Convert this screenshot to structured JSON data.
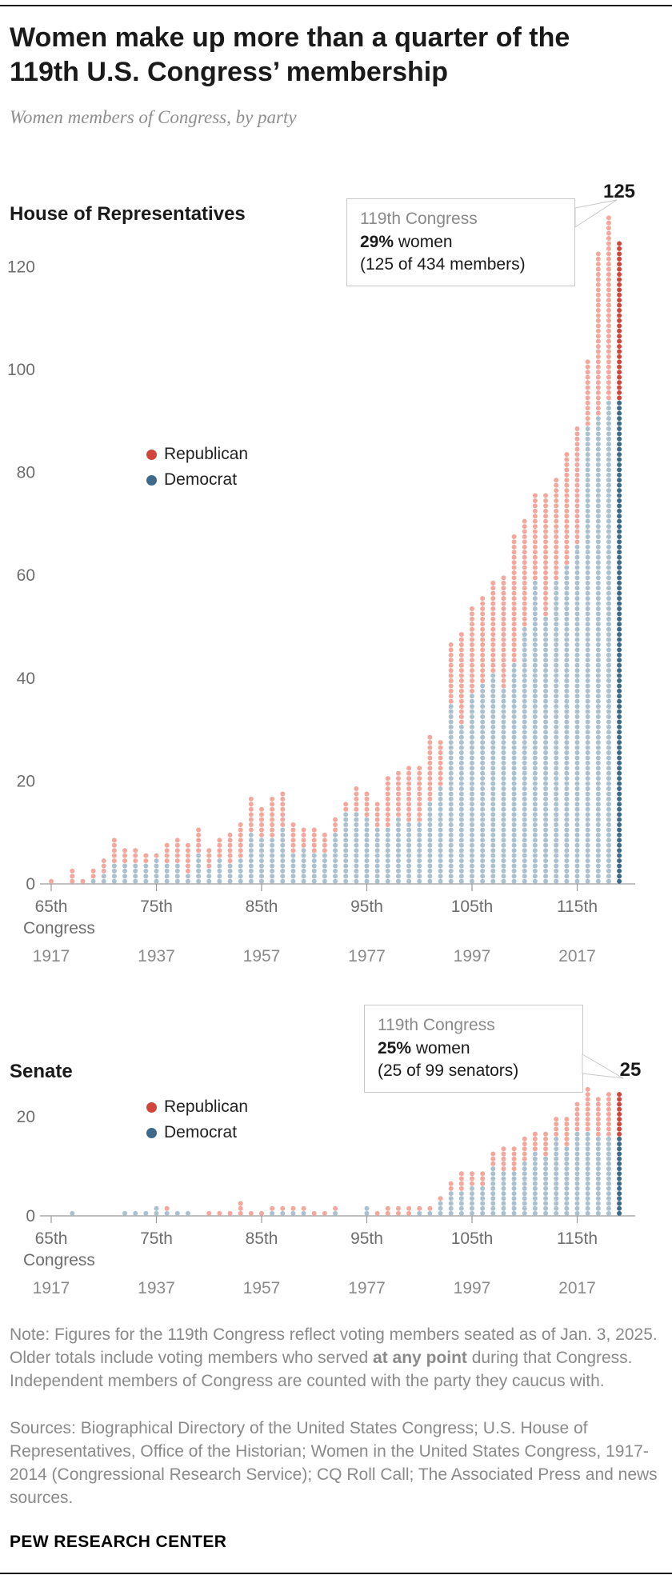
{
  "header": {
    "title": "Women make up more than a quarter of the 119th U.S. Congress’ membership",
    "subtitle": "Women members of Congress, by party"
  },
  "colors": {
    "republican": "#d0453c",
    "democrat": "#3d6a8a",
    "republican_light": "#f3a79d",
    "democrat_light": "#abc1cf"
  },
  "house": {
    "section_label": "House of Representatives",
    "legend": [
      {
        "label": "Republican",
        "color_key": "republican"
      },
      {
        "label": "Democrat",
        "color_key": "democrat"
      }
    ],
    "callout": {
      "title": "119th Congress",
      "stat_bold": "29%",
      "stat_rest": " women",
      "detail": "(125 of 434 members)"
    },
    "value_label": "125"
  },
  "senate": {
    "section_label": "Senate",
    "legend": [
      {
        "label": "Republican",
        "color_key": "republican"
      },
      {
        "label": "Democrat",
        "color_key": "democrat"
      }
    ],
    "callout": {
      "title": "119th Congress",
      "stat_bold": "25%",
      "stat_rest": " women",
      "detail": "(25 of 99 senators)"
    },
    "value_label": "25"
  },
  "notes": {
    "note_pre": "Note: Figures for the 119th Congress reflect voting members seated as of Jan. 3, 2025. Older totals include voting members who served ",
    "note_bold": "at any point",
    "note_post": " during that Congress. Independent members of Congress are counted with the party they caucus with.",
    "sources": "Sources: Biographical Directory of the United States Congress; U.S. House of Representatives, Office of the Historian; Women in the United States Congress, 1917-2014 (Congressional Research Service); CQ Roll Call; The Associated Press and news sources.",
    "footer": "PEW RESEARCH CENTER"
  },
  "chart_data": [
    {
      "id": "house",
      "type": "bar",
      "style": "stacked-dot-column",
      "title": "House of Representatives",
      "highlight_x": 119,
      "ylim": [
        0,
        130
      ],
      "yticks": [
        0,
        20,
        40,
        60,
        80,
        100,
        120
      ],
      "x": [
        65,
        66,
        67,
        68,
        69,
        70,
        71,
        72,
        73,
        74,
        75,
        76,
        77,
        78,
        79,
        80,
        81,
        82,
        83,
        84,
        85,
        86,
        87,
        88,
        89,
        90,
        91,
        92,
        93,
        94,
        95,
        96,
        97,
        98,
        99,
        100,
        101,
        102,
        103,
        104,
        105,
        106,
        107,
        108,
        109,
        110,
        111,
        112,
        113,
        114,
        115,
        116,
        117,
        118,
        119
      ],
      "series": [
        {
          "name": "Democrat",
          "values": [
            0,
            0,
            0,
            0,
            1,
            2,
            4,
            4,
            4,
            4,
            5,
            4,
            4,
            2,
            6,
            3,
            5,
            4,
            5,
            10,
            9,
            9,
            11,
            6,
            7,
            6,
            6,
            10,
            14,
            14,
            13,
            11,
            11,
            13,
            12,
            12,
            16,
            19,
            35,
            31,
            37,
            39,
            41,
            38,
            43,
            50,
            59,
            52,
            59,
            62,
            66,
            89,
            91,
            94,
            94
          ]
        },
        {
          "name": "Republican",
          "values": [
            1,
            0,
            3,
            1,
            2,
            3,
            5,
            3,
            3,
            2,
            1,
            4,
            5,
            6,
            5,
            4,
            4,
            6,
            7,
            7,
            6,
            8,
            7,
            6,
            4,
            5,
            4,
            3,
            2,
            5,
            5,
            5,
            10,
            9,
            11,
            11,
            13,
            9,
            12,
            18,
            17,
            17,
            18,
            22,
            25,
            21,
            17,
            24,
            20,
            22,
            23,
            13,
            32,
            36,
            31
          ]
        }
      ],
      "x_ticks": [
        {
          "value": 65,
          "label": "65th",
          "sub": "Congress",
          "year": "1917"
        },
        {
          "value": 75,
          "label": "75th",
          "year": "1937"
        },
        {
          "value": 85,
          "label": "85th",
          "year": "1957"
        },
        {
          "value": 95,
          "label": "95th",
          "year": "1977"
        },
        {
          "value": 105,
          "label": "105th",
          "year": "1997"
        },
        {
          "value": 115,
          "label": "115th",
          "year": "2017"
        }
      ]
    },
    {
      "id": "senate",
      "type": "bar",
      "style": "stacked-dot-column",
      "title": "Senate",
      "highlight_x": 119,
      "ylim": [
        0,
        26
      ],
      "yticks": [
        0,
        20
      ],
      "x": [
        65,
        66,
        67,
        68,
        69,
        70,
        71,
        72,
        73,
        74,
        75,
        76,
        77,
        78,
        79,
        80,
        81,
        82,
        83,
        84,
        85,
        86,
        87,
        88,
        89,
        90,
        91,
        92,
        93,
        94,
        95,
        96,
        97,
        98,
        99,
        100,
        101,
        102,
        103,
        104,
        105,
        106,
        107,
        108,
        109,
        110,
        111,
        112,
        113,
        114,
        115,
        116,
        117,
        118,
        119
      ],
      "series": [
        {
          "name": "Democrat",
          "values": [
            0,
            0,
            1,
            0,
            0,
            0,
            0,
            1,
            1,
            1,
            2,
            1,
            1,
            1,
            0,
            0,
            0,
            0,
            0,
            0,
            0,
            1,
            1,
            1,
            1,
            0,
            0,
            1,
            0,
            0,
            2,
            0,
            0,
            0,
            0,
            1,
            1,
            3,
            5,
            5,
            6,
            6,
            10,
            9,
            9,
            11,
            13,
            12,
            16,
            14,
            17,
            17,
            16,
            16,
            16
          ]
        },
        {
          "name": "Republican",
          "values": [
            0,
            0,
            0,
            0,
            0,
            0,
            0,
            0,
            0,
            0,
            0,
            1,
            0,
            0,
            0,
            1,
            1,
            1,
            3,
            1,
            1,
            1,
            1,
            1,
            1,
            1,
            1,
            1,
            0,
            0,
            0,
            1,
            2,
            2,
            2,
            1,
            1,
            1,
            2,
            4,
            3,
            3,
            3,
            5,
            5,
            5,
            4,
            5,
            4,
            6,
            6,
            9,
            8,
            9,
            9
          ]
        }
      ],
      "x_ticks": [
        {
          "value": 65,
          "label": "65th",
          "sub": "Congress",
          "year": "1917"
        },
        {
          "value": 75,
          "label": "75th",
          "year": "1937"
        },
        {
          "value": 85,
          "label": "85th",
          "year": "1957"
        },
        {
          "value": 95,
          "label": "95th",
          "year": "1977"
        },
        {
          "value": 105,
          "label": "105th",
          "year": "1997"
        },
        {
          "value": 115,
          "label": "115th",
          "year": "2017"
        }
      ]
    }
  ]
}
